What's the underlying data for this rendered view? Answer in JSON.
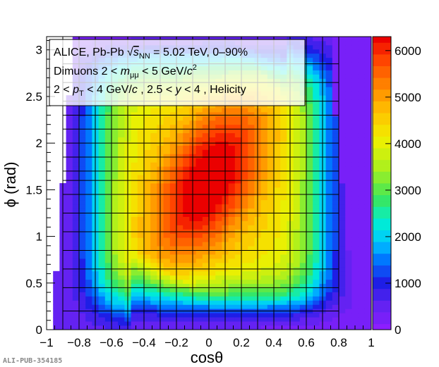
{
  "chart_data": {
    "type": "heatmap",
    "xlabel": "cosθ",
    "ylabel": "ϕ (rad)",
    "xlim": [
      -1,
      1
    ],
    "ylim": [
      0,
      3.14159
    ],
    "xticks": [
      "−1",
      "−0.8",
      "−0.6",
      "−0.4",
      "−0.2",
      "0",
      "0.2",
      "0.4",
      "0.6",
      "0.8",
      "1"
    ],
    "xtick_values": [
      -1,
      -0.8,
      -0.6,
      -0.4,
      -0.2,
      0,
      0.2,
      0.4,
      0.6,
      0.8,
      1
    ],
    "yticks": [
      "0",
      "0.5",
      "1",
      "1.5",
      "2",
      "2.5",
      "3"
    ],
    "ytick_values": [
      0,
      0.5,
      1,
      1.5,
      2,
      2.5,
      3
    ],
    "zlim": [
      0,
      6300
    ],
    "zticks": [
      "0",
      "1000",
      "2000",
      "3000",
      "4000",
      "5000",
      "6000"
    ],
    "ztick_values": [
      0,
      1000,
      2000,
      3000,
      4000,
      5000,
      6000
    ],
    "description_peak": {
      "cos_theta": 0.0,
      "phi": 1.6,
      "value": 6200
    },
    "acceptance_cos_theta_edge": 0.8,
    "grid_x_edges": [
      -0.9,
      -0.8,
      -0.7,
      -0.6,
      -0.5,
      -0.4,
      -0.3,
      -0.2,
      -0.1,
      0,
      0.1,
      0.2,
      0.3,
      0.4,
      0.5,
      0.6,
      0.7,
      0.8
    ],
    "grid_y_edges": [
      0.2,
      0.45,
      0.65,
      0.85,
      1.05,
      1.25,
      1.45,
      1.6,
      1.7,
      1.85,
      2.0,
      2.15,
      2.3,
      2.45,
      2.65,
      2.85
    ],
    "legend": {
      "line1": "ALICE, Pb-Pb ",
      "line1_rest": " = 5.02 TeV, 0–90%",
      "line2": "Dimuons 2 < ",
      "line2_rest": " < 5 GeV/",
      "line3": "2 < ",
      "line3_rest": " < 4 GeV/",
      "line3_end": " , 2.5 < ",
      "line3_tail": " < 4 , Helicity"
    }
  },
  "publication_id": "ALI-PUB-354185"
}
